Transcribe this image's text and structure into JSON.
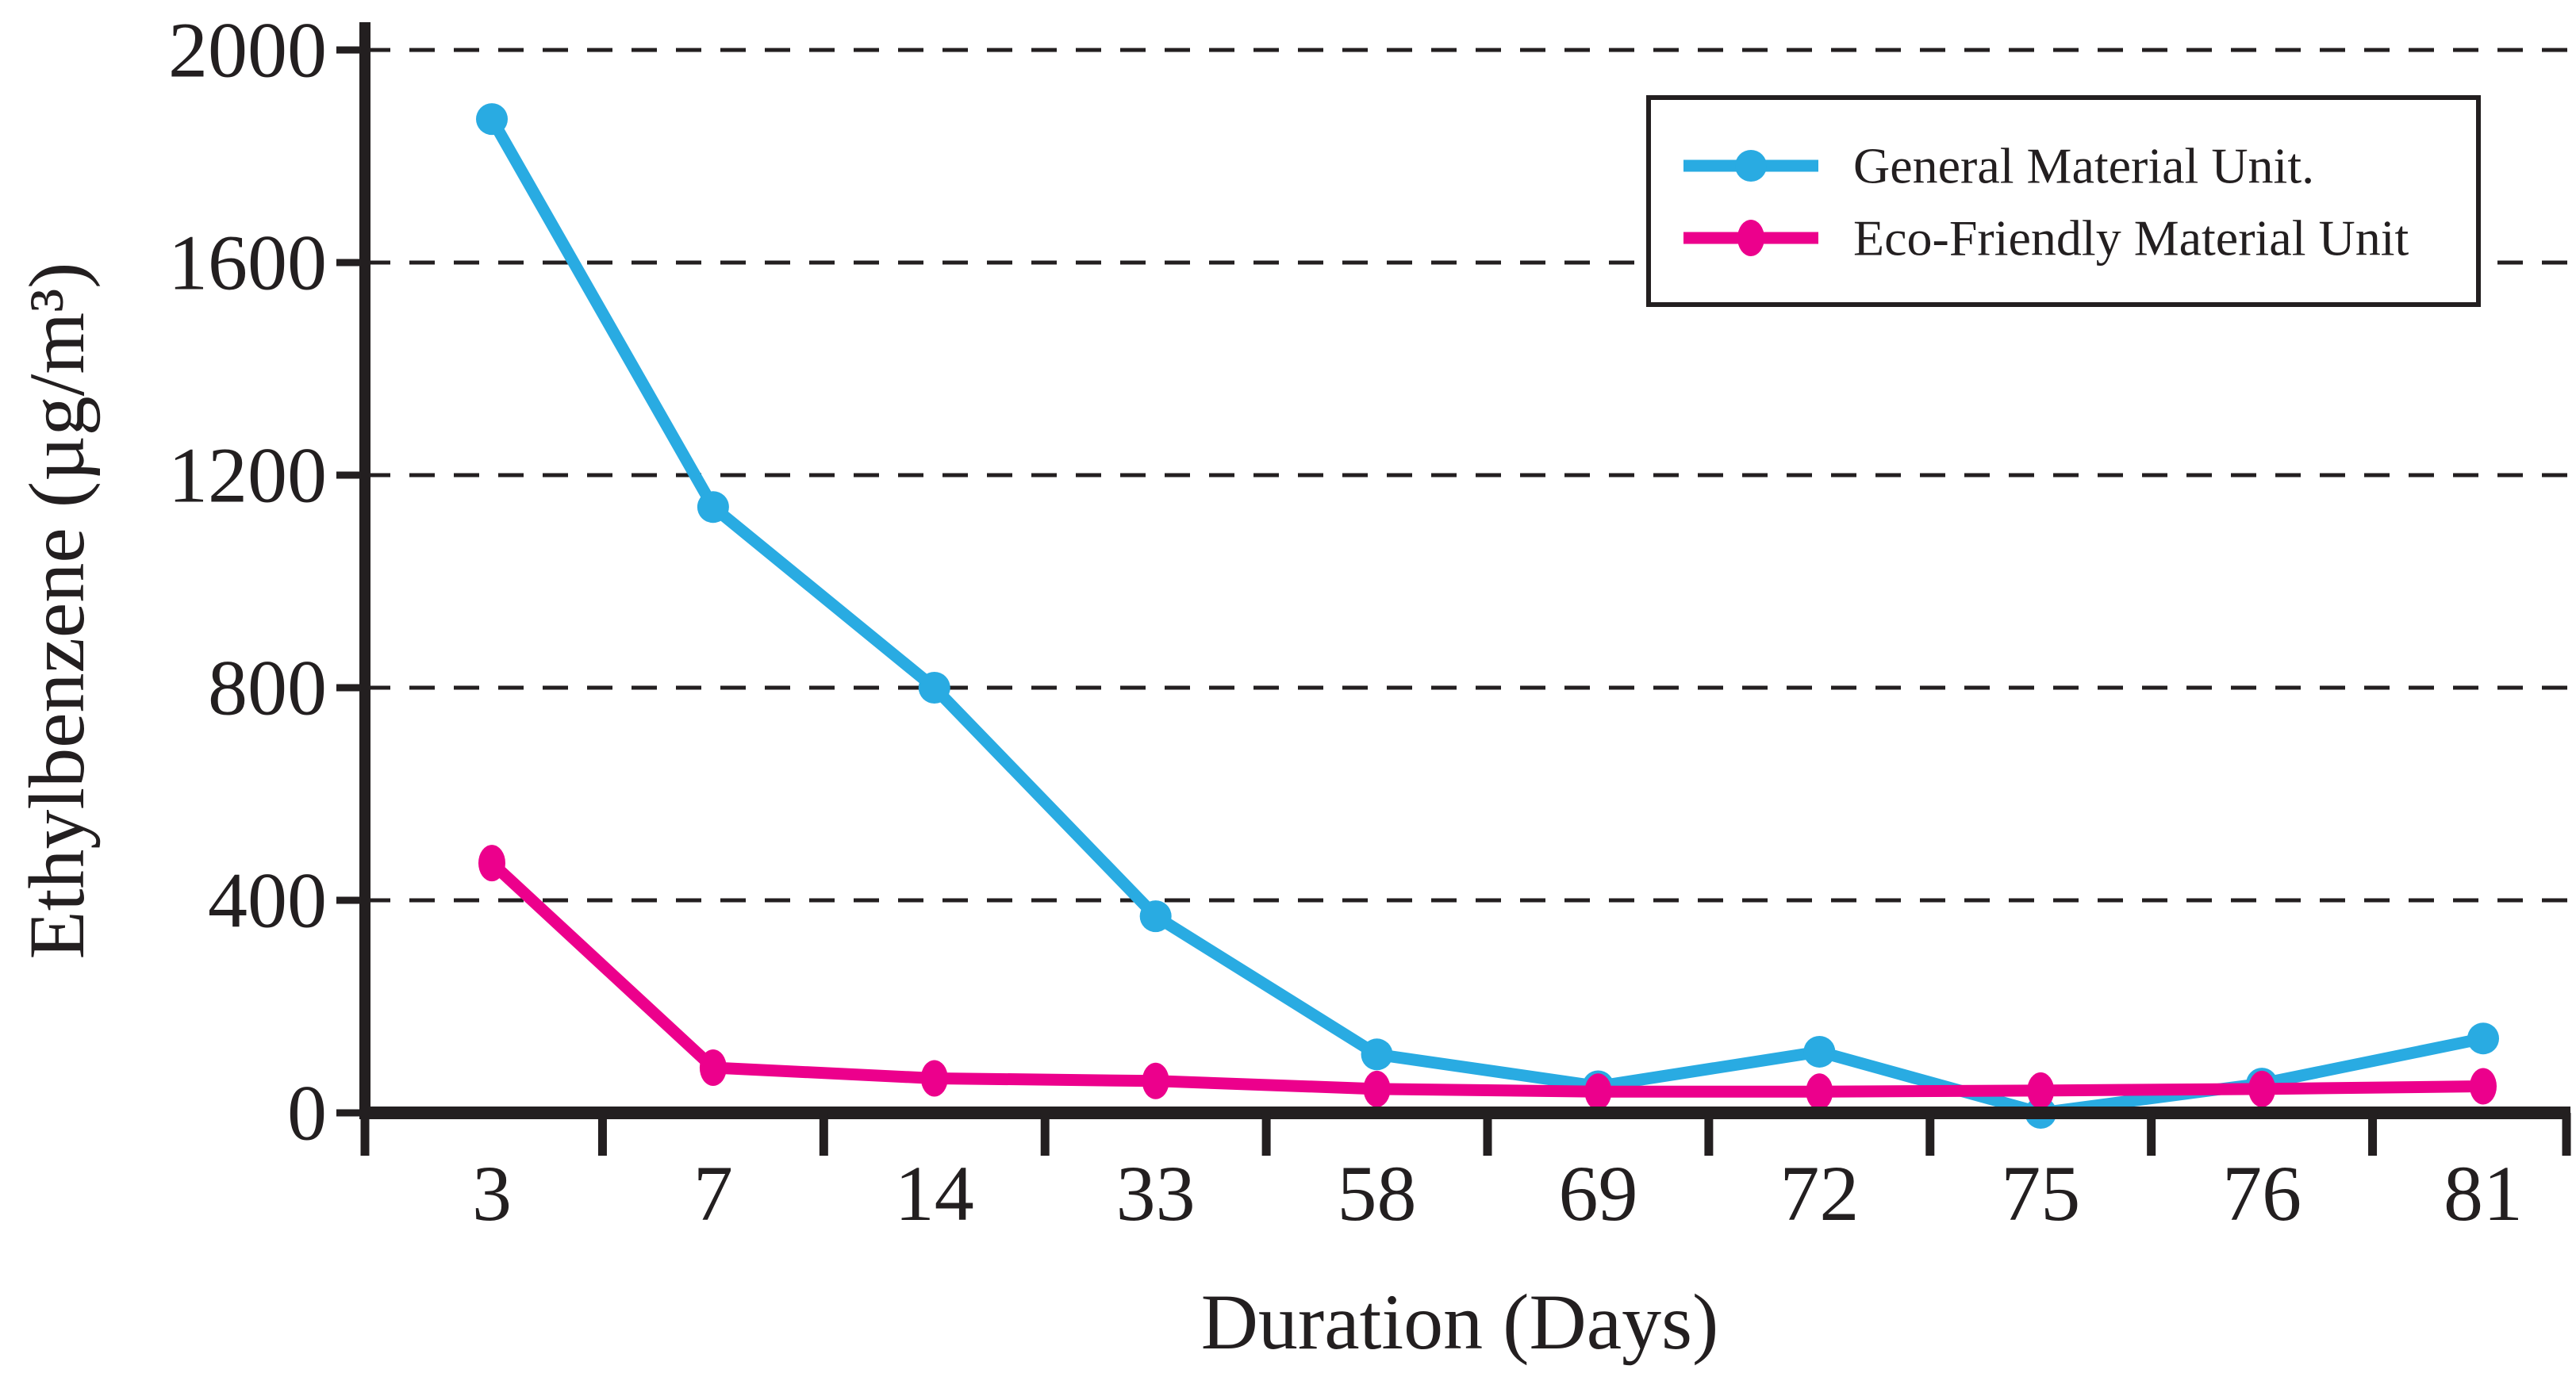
{
  "chart_data": {
    "type": "line",
    "title": "",
    "xlabel": "Duration (Days)",
    "ylabel": "Ethylbenzene (µg/m³)",
    "categories": [
      "3",
      "7",
      "14",
      "33",
      "58",
      "69",
      "72",
      "75",
      "76",
      "81"
    ],
    "series": [
      {
        "name": "General Material Unit.",
        "color": "#29ABE2",
        "marker": "circle",
        "values": [
          1870,
          1140,
          800,
          370,
          110,
          50,
          115,
          0,
          55,
          140
        ]
      },
      {
        "name": "Eco-Friendly Material Unit",
        "color": "#EC008C",
        "marker": "ellipse",
        "values": [
          470,
          85,
          65,
          60,
          45,
          40,
          40,
          42,
          45,
          50
        ]
      }
    ],
    "ylim": [
      0,
      2000
    ],
    "yticks": [
      0,
      400,
      800,
      1200,
      1600,
      2000
    ],
    "grid": "dashed-horizontal",
    "legend_position": "top-right"
  },
  "legend": {
    "items": [
      "General Material Unit.",
      "Eco-Friendly Material Unit"
    ]
  },
  "colors": {
    "background": "#FFFFFF",
    "axis": "#231F20",
    "gridline": "#231F20",
    "series_general": "#29ABE2",
    "series_eco": "#EC008C"
  }
}
